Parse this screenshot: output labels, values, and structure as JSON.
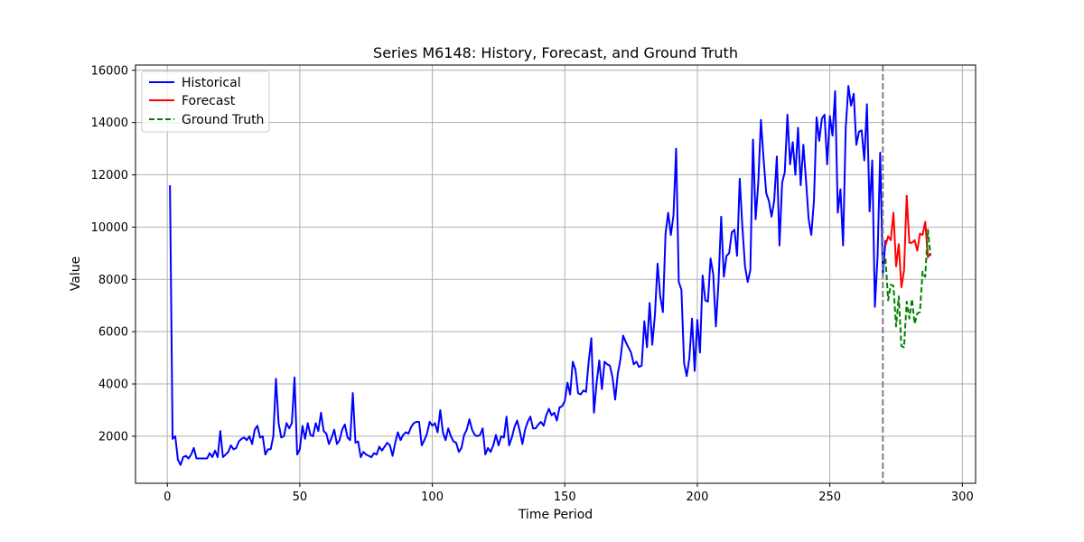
{
  "chart_data": {
    "type": "line",
    "title": "Series M6148: History, Forecast, and Ground Truth",
    "xlabel": "Time Period",
    "ylabel": "Value",
    "xlim": [
      -12,
      305
    ],
    "ylim": [
      200,
      16200
    ],
    "xticks": [
      0,
      50,
      100,
      150,
      200,
      250,
      300
    ],
    "yticks": [
      2000,
      4000,
      6000,
      8000,
      10000,
      12000,
      14000,
      16000
    ],
    "grid": true,
    "legend_position": "upper-left",
    "forecast_start_marker": 270,
    "series": [
      {
        "name": "Historical",
        "color": "#0000ff",
        "style": "solid",
        "x_start": 1,
        "values": [
          11600,
          1900,
          2000,
          1100,
          900,
          1200,
          1250,
          1150,
          1300,
          1550,
          1150,
          1150,
          1150,
          1150,
          1150,
          1350,
          1200,
          1450,
          1200,
          2200,
          1200,
          1300,
          1400,
          1650,
          1500,
          1550,
          1800,
          1900,
          1950,
          1850,
          2000,
          1700,
          2250,
          2400,
          1950,
          2000,
          1300,
          1500,
          1500,
          2000,
          4200,
          2500,
          1950,
          2000,
          2500,
          2300,
          2500,
          4250,
          1300,
          1500,
          2400,
          1900,
          2500,
          2050,
          2000,
          2500,
          2200,
          2900,
          2200,
          2100,
          1700,
          1950,
          2250,
          1700,
          1850,
          2250,
          2450,
          1950,
          1850,
          3650,
          1750,
          1800,
          1200,
          1400,
          1300,
          1250,
          1200,
          1350,
          1300,
          1600,
          1450,
          1600,
          1750,
          1650,
          1250,
          1750,
          2150,
          1850,
          2050,
          2150,
          2100,
          2350,
          2500,
          2550,
          2550,
          1650,
          1850,
          2100,
          2550,
          2400,
          2500,
          2150,
          3000,
          2150,
          1850,
          2300,
          2000,
          1800,
          1750,
          1400,
          1550,
          2050,
          2250,
          2650,
          2250,
          2050,
          2000,
          2050,
          2300,
          1300,
          1550,
          1400,
          1650,
          2050,
          1650,
          2000,
          1950,
          2750,
          1650,
          1950,
          2350,
          2600,
          2200,
          1700,
          2250,
          2550,
          2750,
          2300,
          2300,
          2450,
          2550,
          2400,
          2800,
          3050,
          2800,
          2900,
          2600,
          3100,
          3150,
          3350,
          4050,
          3600,
          4850,
          4550,
          3650,
          3600,
          3750,
          3700,
          4850,
          5750,
          2900,
          4050,
          4900,
          3800,
          4850,
          4750,
          4700,
          4250,
          3400,
          4400,
          4950,
          5850,
          5600,
          5400,
          5200,
          4750,
          4850,
          4650,
          4700,
          6400,
          5400,
          7100,
          5500,
          6650,
          8600,
          7350,
          6750,
          9750,
          10550,
          9700,
          10450,
          13000,
          7900,
          7600,
          4800,
          4300,
          5000,
          6500,
          4500,
          6450,
          5200,
          8150,
          7200,
          7150,
          8800,
          8200,
          6200,
          7900,
          10400,
          8100,
          8900,
          9000,
          9800,
          9900,
          8900,
          11850,
          10000,
          8500,
          7900,
          8350,
          13350,
          10300,
          11700,
          14100,
          12600,
          11300,
          11000,
          10400,
          11000,
          12700,
          9300,
          11700,
          12100,
          14300,
          12400,
          13250,
          12000,
          13800,
          11600,
          13150,
          11800,
          10300,
          9700,
          11000,
          14200,
          13300,
          14150,
          14300,
          12400,
          14250,
          13500,
          15200,
          10550,
          11450,
          9300,
          13800,
          15400,
          14650,
          15100,
          13150,
          13650,
          13700,
          12550,
          14700,
          10600,
          12550,
          6950,
          8850,
          12850,
          8150,
          9500
        ]
      },
      {
        "name": "Forecast",
        "color": "#ff0000",
        "style": "solid",
        "x_start": 271,
        "values": [
          9300,
          9650,
          9500,
          10550,
          8500,
          9350,
          7700,
          8350,
          11200,
          9400,
          9400,
          9500,
          9100,
          9750,
          9700,
          10200,
          8850,
          9000
        ]
      },
      {
        "name": "Ground Truth",
        "color": "#008000",
        "style": "dashed",
        "x_start": 271,
        "values": [
          8800,
          7200,
          7800,
          7750,
          6200,
          7350,
          5450,
          5400,
          7150,
          6500,
          7250,
          6300,
          6700,
          6750,
          8300,
          8100,
          9900,
          8900
        ]
      }
    ]
  }
}
